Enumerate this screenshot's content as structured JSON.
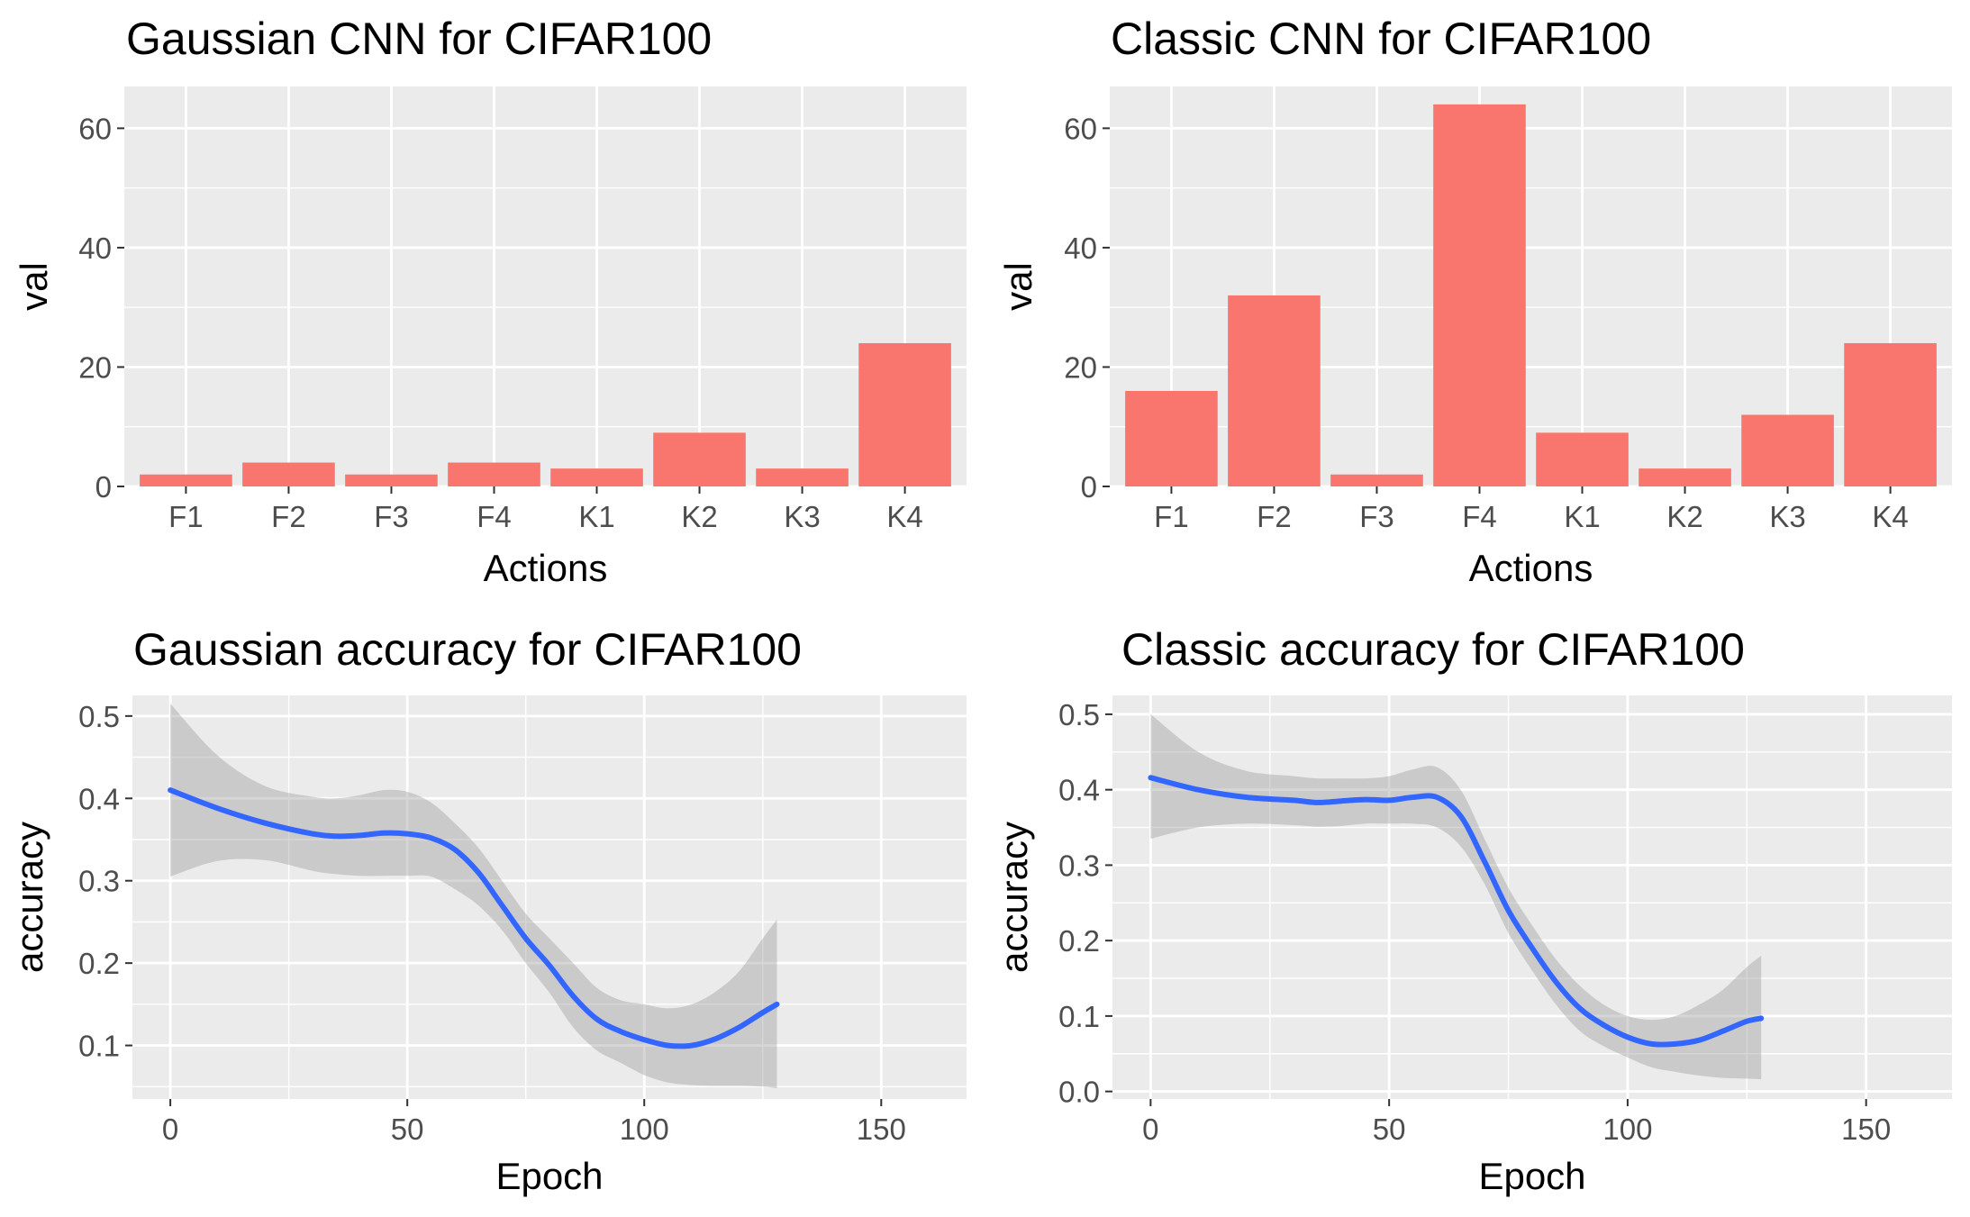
{
  "chart_data": [
    {
      "type": "bar",
      "title": "Gaussian CNN for  CIFAR100",
      "xlabel": "Actions",
      "ylabel": "val",
      "categories": [
        "F1",
        "F2",
        "F3",
        "F4",
        "K1",
        "K2",
        "K3",
        "K4"
      ],
      "values": [
        2,
        4,
        2,
        4,
        3,
        9,
        3,
        24
      ],
      "ylim": [
        0,
        67
      ],
      "yticks": [
        0,
        20,
        40,
        60
      ],
      "bar_color": "#F8766D",
      "panel_background": "#EBEBEB",
      "grid": true
    },
    {
      "type": "bar",
      "title": "Classic CNN for  CIFAR100",
      "xlabel": "Actions",
      "ylabel": "val",
      "categories": [
        "F1",
        "F2",
        "F3",
        "F4",
        "K1",
        "K2",
        "K3",
        "K4"
      ],
      "values": [
        16,
        32,
        2,
        64,
        9,
        3,
        12,
        24
      ],
      "ylim": [
        0,
        67
      ],
      "yticks": [
        0,
        20,
        40,
        60
      ],
      "bar_color": "#F8766D",
      "panel_background": "#EBEBEB",
      "grid": true
    },
    {
      "type": "line",
      "title": "Gaussian accuracy for  CIFAR100",
      "xlabel": "Epoch",
      "ylabel": "accuracy",
      "x": [
        0,
        10,
        20,
        30,
        35,
        40,
        45,
        50,
        55,
        60,
        65,
        70,
        75,
        80,
        85,
        90,
        95,
        100,
        105,
        110,
        115,
        120,
        125,
        128
      ],
      "y": [
        0.41,
        0.388,
        0.37,
        0.357,
        0.354,
        0.355,
        0.358,
        0.357,
        0.352,
        0.338,
        0.31,
        0.27,
        0.23,
        0.197,
        0.16,
        0.132,
        0.117,
        0.107,
        0.1,
        0.1,
        0.108,
        0.122,
        0.14,
        0.15
      ],
      "ci_upper": [
        0.515,
        0.452,
        0.415,
        0.402,
        0.4,
        0.404,
        0.41,
        0.408,
        0.395,
        0.37,
        0.34,
        0.3,
        0.26,
        0.23,
        0.2,
        0.17,
        0.155,
        0.15,
        0.145,
        0.15,
        0.165,
        0.19,
        0.23,
        0.253
      ],
      "ci_lower": [
        0.305,
        0.324,
        0.325,
        0.312,
        0.308,
        0.306,
        0.306,
        0.306,
        0.305,
        0.29,
        0.27,
        0.24,
        0.2,
        0.164,
        0.122,
        0.094,
        0.079,
        0.064,
        0.055,
        0.052,
        0.051,
        0.051,
        0.05,
        0.048
      ],
      "xlim": [
        -8,
        168
      ],
      "ylim": [
        0.035,
        0.525
      ],
      "xticks": [
        0,
        50,
        100,
        150
      ],
      "yticks": [
        0.1,
        0.2,
        0.3,
        0.4,
        0.5
      ],
      "line_color": "#3366FF",
      "ribbon_color": "#999999",
      "panel_background": "#EBEBEB",
      "grid": true
    },
    {
      "type": "line",
      "title": "Classic accuracy for  CIFAR100",
      "xlabel": "Epoch",
      "ylabel": "accuracy",
      "x": [
        0,
        10,
        20,
        30,
        35,
        40,
        45,
        50,
        55,
        60,
        65,
        70,
        75,
        80,
        85,
        90,
        95,
        100,
        105,
        110,
        115,
        120,
        125,
        128
      ],
      "y": [
        0.416,
        0.4,
        0.39,
        0.386,
        0.383,
        0.385,
        0.387,
        0.386,
        0.39,
        0.39,
        0.365,
        0.305,
        0.24,
        0.19,
        0.145,
        0.11,
        0.088,
        0.072,
        0.063,
        0.063,
        0.068,
        0.08,
        0.093,
        0.097
      ],
      "ci_upper": [
        0.5,
        0.45,
        0.425,
        0.418,
        0.415,
        0.415,
        0.415,
        0.418,
        0.427,
        0.43,
        0.4,
        0.335,
        0.27,
        0.22,
        0.175,
        0.14,
        0.115,
        0.1,
        0.095,
        0.1,
        0.115,
        0.135,
        0.165,
        0.18
      ],
      "ci_lower": [
        0.335,
        0.35,
        0.355,
        0.353,
        0.351,
        0.352,
        0.355,
        0.355,
        0.355,
        0.35,
        0.325,
        0.275,
        0.21,
        0.16,
        0.115,
        0.08,
        0.06,
        0.045,
        0.032,
        0.026,
        0.021,
        0.018,
        0.017,
        0.016
      ],
      "xlim": [
        -8,
        168
      ],
      "ylim": [
        -0.01,
        0.525
      ],
      "xticks": [
        0,
        50,
        100,
        150
      ],
      "yticks": [
        0.0,
        0.1,
        0.2,
        0.3,
        0.4,
        0.5
      ],
      "line_color": "#3366FF",
      "ribbon_color": "#999999",
      "panel_background": "#EBEBEB",
      "grid": true
    }
  ]
}
